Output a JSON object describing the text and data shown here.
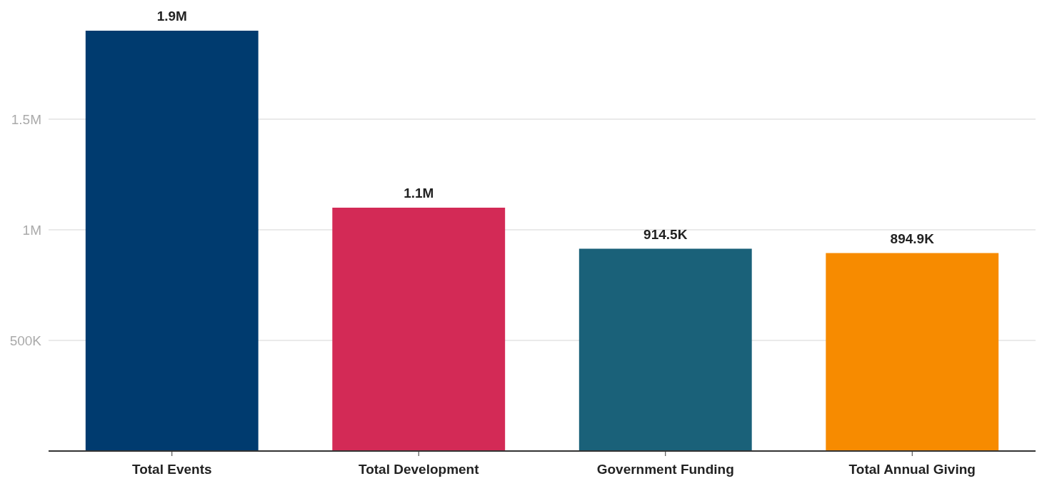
{
  "chart_data": {
    "type": "bar",
    "categories": [
      "Total Events",
      "Total Development",
      "Government Funding",
      "Total Annual Giving"
    ],
    "values": [
      1900000,
      1100000,
      914500,
      894900
    ],
    "colors": [
      "#003b6f",
      "#d32a56",
      "#1a6179",
      "#f78b00"
    ],
    "value_labels": [
      "1.9M",
      "1.1M",
      "914.5K",
      "894.9K"
    ],
    "ylim": [
      0,
      1900000
    ],
    "yticks": [
      {
        "value": 500000,
        "label": "500K"
      },
      {
        "value": 1000000,
        "label": "1M"
      },
      {
        "value": 1500000,
        "label": "1.5M"
      }
    ],
    "grid": "y"
  }
}
